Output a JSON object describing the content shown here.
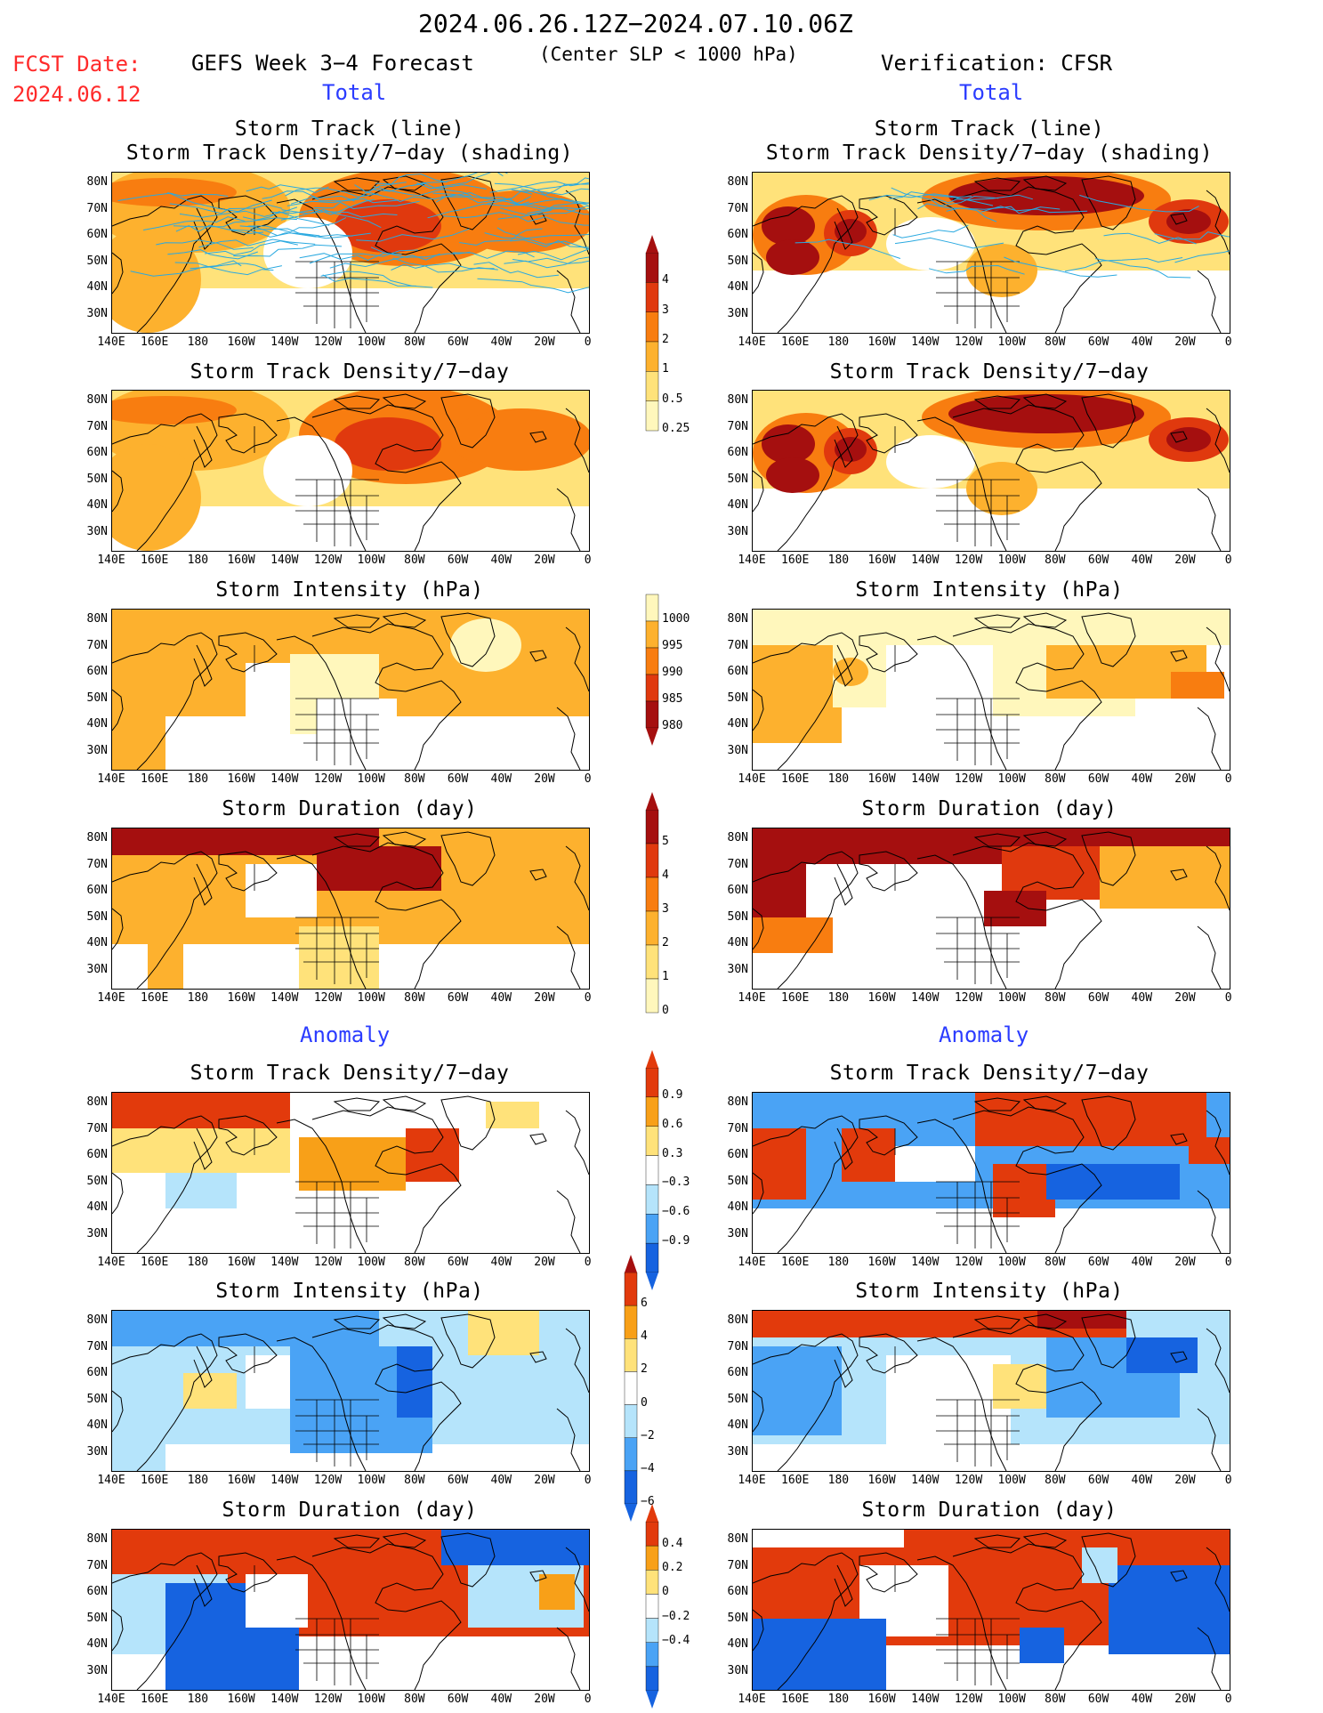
{
  "header": {
    "date_range": "2024.06.26.12Z−2024.07.10.06Z",
    "fcst_label": "FCST Date:",
    "fcst_date": "2024.06.12",
    "left_title": "GEFS Week 3−4 Forecast",
    "subtitle": "(Center SLP < 1000 hPa)",
    "right_title": "Verification: CFSR",
    "total_left": "Total",
    "total_right": "Total",
    "anomaly_left": "Anomaly",
    "anomaly_right": "Anomaly"
  },
  "axes": {
    "lat_labels": [
      "80N",
      "70N",
      "60N",
      "50N",
      "40N",
      "30N"
    ],
    "lon_labels": [
      "140E",
      "160E",
      "180",
      "160W",
      "140W",
      "120W",
      "100W",
      "80W",
      "60W",
      "40W",
      "20W",
      "0"
    ]
  },
  "panels": {
    "p1_title_a": "Storm Track (line)",
    "p1_title_b": "Storm Track Density/7−day (shading)",
    "p2_title": "Storm Track Density/7−day",
    "p3_title": "Storm Intensity (hPa)",
    "p4_title": "Storm Duration (day)",
    "p5_title": "Storm Track Density/7−day",
    "p6_title": "Storm Intensity (hPa)",
    "p7_title": "Storm Duration (day)"
  },
  "colorbars": {
    "density": [
      "4",
      "3",
      "2",
      "1",
      "0.5",
      "0.25"
    ],
    "intensity": [
      "1000",
      "995",
      "990",
      "985",
      "980"
    ],
    "duration": [
      "5",
      "4",
      "3",
      "2",
      "1",
      "0"
    ],
    "density_anom": [
      "0.9",
      "0.6",
      "0.3",
      "−0.3",
      "−0.6",
      "−0.9"
    ],
    "intensity_anom": [
      "6",
      "4",
      "2",
      "0",
      "−2",
      "−4",
      "−6"
    ],
    "duration_anom": [
      "0.4",
      "0.2",
      "0",
      "−0.2",
      "−0.4"
    ]
  },
  "colors": {
    "seq": [
      "#fff7bc",
      "#ffe27a",
      "#fdb12e",
      "#f87d10",
      "#e0390e",
      "#a50f0f"
    ],
    "div": [
      "#1663e0",
      "#4aa3f5",
      "#b5e4fb",
      "#ffffff",
      "#ffe27a",
      "#f8a018",
      "#e23a0c"
    ],
    "track": "#2aa9e0"
  }
}
